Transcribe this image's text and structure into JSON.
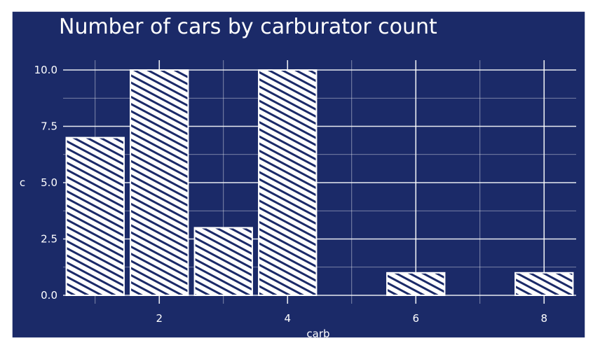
{
  "chart_data": {
    "type": "bar",
    "title": "Number of cars by carburator count",
    "xlabel": "carb",
    "ylabel": "c",
    "x": [
      1,
      2,
      3,
      4,
      6,
      8
    ],
    "values": [
      7,
      10,
      3,
      10,
      1,
      1
    ],
    "xlim": [
      0.5,
      8.5
    ],
    "ylim": [
      0,
      10
    ],
    "xticks": [
      "2",
      "4",
      "6",
      "8"
    ],
    "xtick_values": [
      2,
      4,
      6,
      8
    ],
    "yticks": [
      "0.0",
      "2.5",
      "5.0",
      "7.5",
      "10.0"
    ],
    "ytick_values": [
      0,
      2.5,
      5,
      7.5,
      10
    ],
    "grid": true,
    "legend": "none",
    "colors": {
      "background": "#1b2a68",
      "bars": "#ffffff",
      "grid": "#ffffff"
    },
    "style": "hand-drawn hatched"
  }
}
